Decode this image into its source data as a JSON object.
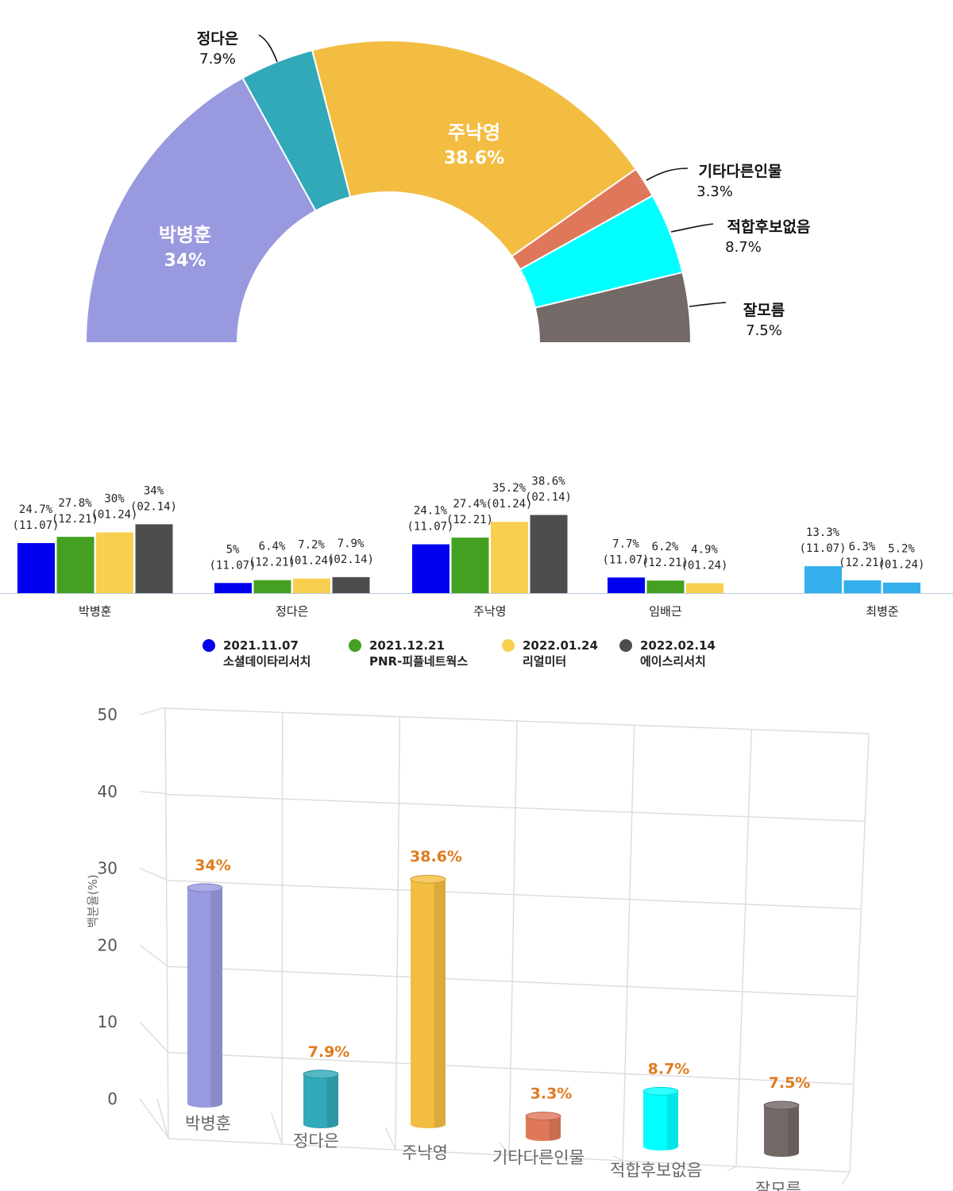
{
  "colors": {
    "park": "#9999df",
    "jung": "#31a9b8",
    "joo": "#f3bd41",
    "etc": "#df785a",
    "none": "#00ffff",
    "unknown": "#736966",
    "label_accent": "#e07b1e",
    "s1": "#0000ee",
    "s2": "#43a020",
    "s3": "#f9cf50",
    "s4": "#4d4d4d",
    "s5_choi": "#33b0ec"
  },
  "chart_data": [
    {
      "type": "pie",
      "variant": "half-donut",
      "slices": [
        {
          "label": "박병훈",
          "value": 34,
          "value_label": "34%",
          "color_key": "park",
          "label_inside": true
        },
        {
          "label": "정다은",
          "value": 7.9,
          "value_label": "7.9%",
          "color_key": "jung",
          "label_inside": false
        },
        {
          "label": "주낙영",
          "value": 38.6,
          "value_label": "38.6%",
          "color_key": "joo",
          "label_inside": true
        },
        {
          "label": "기타다른인물",
          "value": 3.3,
          "value_label": "3.3%",
          "color_key": "etc",
          "label_inside": false
        },
        {
          "label": "적합후보없음",
          "value": 8.7,
          "value_label": "8.7%",
          "color_key": "none",
          "label_inside": false
        },
        {
          "label": "잘모름",
          "value": 7.5,
          "value_label": "7.5%",
          "color_key": "unknown",
          "label_inside": false
        }
      ]
    },
    {
      "type": "bar",
      "ylim": [
        0,
        50
      ],
      "groups": [
        {
          "name": "박병훈",
          "bars": [
            {
              "series": 0,
              "value": 24.7,
              "label": "24.7%",
              "date": "(11.07)"
            },
            {
              "series": 1,
              "value": 27.8,
              "label": "27.8%",
              "date": "(12.21)"
            },
            {
              "series": 2,
              "value": 30,
              "label": "30%",
              "date": "(01.24)"
            },
            {
              "series": 3,
              "value": 34,
              "label": "34%",
              "date": "(02.14)"
            }
          ]
        },
        {
          "name": "정다은",
          "bars": [
            {
              "series": 0,
              "value": 5,
              "label": "5%",
              "date": "(11.07)"
            },
            {
              "series": 1,
              "value": 6.4,
              "label": "6.4%",
              "date": "(12.21)"
            },
            {
              "series": 2,
              "value": 7.2,
              "label": "7.2%",
              "date": "(01.24)"
            },
            {
              "series": 3,
              "value": 7.9,
              "label": "7.9%",
              "date": "(02.14)"
            }
          ]
        },
        {
          "name": "주낙영",
          "bars": [
            {
              "series": 0,
              "value": 24.1,
              "label": "24.1%",
              "date": "(11.07)"
            },
            {
              "series": 1,
              "value": 27.4,
              "label": "27.4%",
              "date": "(12.21)"
            },
            {
              "series": 2,
              "value": 35.2,
              "label": "35.2%",
              "date": "(01.24)"
            },
            {
              "series": 3,
              "value": 38.6,
              "label": "38.6%",
              "date": "(02.14)"
            }
          ]
        },
        {
          "name": "임배근",
          "bars": [
            {
              "series": 0,
              "value": 7.7,
              "label": "7.7%",
              "date": "(11.07)"
            },
            {
              "series": 1,
              "value": 6.2,
              "label": "6.2%",
              "date": "(12.21)"
            },
            {
              "series": 2,
              "value": 4.9,
              "label": "4.9%",
              "date": "(01.24)"
            }
          ]
        },
        {
          "name": "최병준",
          "bars": [
            {
              "series": 0,
              "value": 13.3,
              "label": "13.3%",
              "date": "(11.07)"
            },
            {
              "series": 1,
              "value": 6.3,
              "label": "6.3%",
              "date": "(12.21)"
            },
            {
              "series": 2,
              "value": 5.2,
              "label": "5.2%",
              "date": "(01.24)"
            }
          ]
        }
      ],
      "series": [
        {
          "name": "2021.11.07 소셜데이타리서치",
          "date": "2021.11.07",
          "pollster": "소셜데이타리서치",
          "color_key": "s1"
        },
        {
          "name": "2021.12.21 PNR-피플네트웍스",
          "date": "2021.12.21",
          "pollster": "PNR-피플네트웍스",
          "color_key": "s2"
        },
        {
          "name": "2022.01.24 리얼미터",
          "date": "2022.01.24",
          "pollster": "리얼미터",
          "color_key": "s3"
        },
        {
          "name": "2022.02.14 에이스리서치",
          "date": "2022.02.14",
          "pollster": "에이스리서치",
          "color_key": "s4"
        }
      ],
      "legend_placement": "bottom"
    },
    {
      "type": "bar",
      "variant": "3d-cylinder",
      "ylabel": "백분율(%)",
      "ylim": [
        0,
        50
      ],
      "yticks": [
        0,
        10,
        20,
        30,
        40,
        50
      ],
      "grid": true,
      "categories": [
        "박병훈",
        "정다은",
        "주낙영",
        "기타다른인물",
        "적합후보없음",
        "잘모름"
      ],
      "values": [
        34,
        7.9,
        38.6,
        3.3,
        8.7,
        7.5
      ],
      "value_labels": [
        "34%",
        "7.9%",
        "38.6%",
        "3.3%",
        "8.7%",
        "7.5%"
      ],
      "color_keys": [
        "park",
        "jung",
        "joo",
        "etc",
        "none",
        "unknown"
      ]
    }
  ]
}
